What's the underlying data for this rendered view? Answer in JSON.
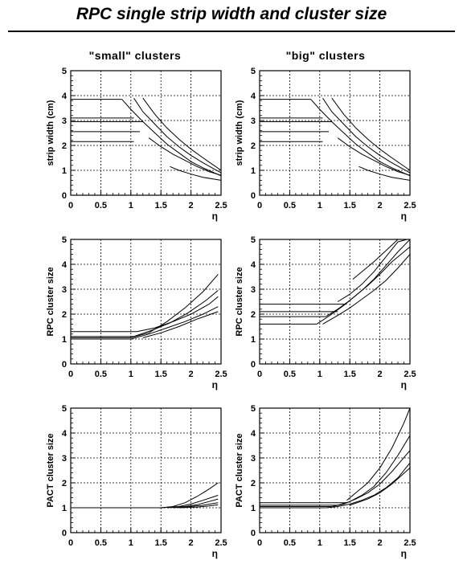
{
  "page": {
    "title": "RPC single strip width and cluster size",
    "columns": [
      "\"small\" clusters",
      "\"big\" clusters"
    ]
  },
  "chart_data": [
    {
      "type": "line",
      "panel": "strip-width-small",
      "column": "\"small\" clusters",
      "xlabel": "η",
      "ylabel": "strip width (cm)",
      "xlim": [
        0,
        2.5
      ],
      "ylim": [
        0,
        5
      ],
      "xticks": [
        "0",
        "0.5",
        "1",
        "1.5",
        "2",
        "2.5"
      ],
      "yticks": [
        "0",
        "1",
        "2",
        "3",
        "4",
        "5"
      ],
      "grid": true,
      "series": [
        {
          "x": [
            0.0,
            0.85
          ],
          "y": [
            3.85,
            3.85
          ]
        },
        {
          "x": [
            0.85,
            1.0,
            1.2,
            1.4,
            1.6,
            1.8,
            2.0,
            2.2,
            2.5
          ],
          "y": [
            3.85,
            3.45,
            2.95,
            2.5,
            2.05,
            1.7,
            1.35,
            1.1,
            0.78
          ]
        },
        {
          "x": [
            0.0,
            1.05
          ],
          "y": [
            3.1,
            3.1
          ]
        },
        {
          "x": [
            1.05,
            1.2,
            1.4,
            1.6,
            1.8,
            2.0,
            2.2,
            2.5
          ],
          "y": [
            3.9,
            3.35,
            2.85,
            2.35,
            1.95,
            1.6,
            1.3,
            0.9
          ]
        },
        {
          "x": [
            0.0,
            1.2
          ],
          "y": [
            2.95,
            2.95
          ]
        },
        {
          "x": [
            1.2,
            1.4,
            1.6,
            1.8,
            2.0,
            2.2,
            2.5
          ],
          "y": [
            3.9,
            3.25,
            2.7,
            2.25,
            1.85,
            1.5,
            1.0
          ]
        },
        {
          "x": [
            0.0,
            1.15
          ],
          "y": [
            2.55,
            2.55
          ]
        },
        {
          "x": [
            1.3,
            1.5,
            1.7,
            1.9,
            2.1,
            2.3,
            2.5
          ],
          "y": [
            2.3,
            1.95,
            1.65,
            1.4,
            1.15,
            0.95,
            0.8
          ]
        },
        {
          "x": [
            0.0,
            1.05
          ],
          "y": [
            2.15,
            2.15
          ]
        },
        {
          "x": [
            1.65,
            1.8,
            2.0,
            2.2,
            2.5
          ],
          "y": [
            1.15,
            1.0,
            0.85,
            0.72,
            0.6
          ]
        }
      ]
    },
    {
      "type": "line",
      "panel": "strip-width-big",
      "column": "\"big\" clusters",
      "xlabel": "η",
      "ylabel": "strip width (cm)",
      "xlim": [
        0,
        2.5
      ],
      "ylim": [
        0,
        5
      ],
      "xticks": [
        "0",
        "0.5",
        "1",
        "1.5",
        "2",
        "2.5"
      ],
      "yticks": [
        "0",
        "1",
        "2",
        "3",
        "4",
        "5"
      ],
      "grid": true,
      "series": [
        {
          "x": [
            0.0,
            0.85
          ],
          "y": [
            3.85,
            3.85
          ]
        },
        {
          "x": [
            0.85,
            1.0,
            1.2,
            1.4,
            1.6,
            1.8,
            2.0,
            2.2,
            2.5
          ],
          "y": [
            3.85,
            3.45,
            2.95,
            2.5,
            2.05,
            1.7,
            1.35,
            1.1,
            0.78
          ]
        },
        {
          "x": [
            0.0,
            1.05
          ],
          "y": [
            3.1,
            3.1
          ]
        },
        {
          "x": [
            1.05,
            1.2,
            1.4,
            1.6,
            1.8,
            2.0,
            2.2,
            2.5
          ],
          "y": [
            3.9,
            3.35,
            2.85,
            2.35,
            1.95,
            1.6,
            1.3,
            0.9
          ]
        },
        {
          "x": [
            0.0,
            1.2
          ],
          "y": [
            2.95,
            2.95
          ]
        },
        {
          "x": [
            1.2,
            1.4,
            1.6,
            1.8,
            2.0,
            2.2,
            2.5
          ],
          "y": [
            3.9,
            3.25,
            2.7,
            2.25,
            1.85,
            1.5,
            1.0
          ]
        },
        {
          "x": [
            0.0,
            1.15
          ],
          "y": [
            2.55,
            2.55
          ]
        },
        {
          "x": [
            1.3,
            1.5,
            1.7,
            1.9,
            2.1,
            2.3,
            2.5
          ],
          "y": [
            2.3,
            1.95,
            1.65,
            1.4,
            1.15,
            0.95,
            0.8
          ]
        },
        {
          "x": [
            0.0,
            1.05
          ],
          "y": [
            2.15,
            2.15
          ]
        },
        {
          "x": [
            1.65,
            1.8,
            2.0,
            2.2,
            2.5
          ],
          "y": [
            1.15,
            1.0,
            0.85,
            0.72,
            0.6
          ]
        }
      ]
    },
    {
      "type": "line",
      "panel": "rpc-cluster-small",
      "column": "\"small\" clusters",
      "xlabel": "η",
      "ylabel": "RPC cluster size",
      "xlim": [
        0,
        2.5
      ],
      "ylim": [
        0,
        5
      ],
      "xticks": [
        "0",
        "0.5",
        "1",
        "1.5",
        "2",
        "2.5"
      ],
      "yticks": [
        "0",
        "1",
        "2",
        "3",
        "4",
        "5"
      ],
      "grid": true,
      "series": [
        {
          "x": [
            0.0,
            1.0,
            1.3,
            1.6,
            1.9,
            2.2,
            2.45
          ],
          "y": [
            1.05,
            1.05,
            1.25,
            1.7,
            2.25,
            2.9,
            3.6
          ]
        },
        {
          "x": [
            0.0,
            1.05,
            1.35,
            1.65,
            1.95,
            2.25,
            2.45
          ],
          "y": [
            1.1,
            1.1,
            1.35,
            1.65,
            2.05,
            2.55,
            2.95
          ]
        },
        {
          "x": [
            0.0,
            1.1,
            1.4,
            1.7,
            2.0,
            2.3,
            2.45
          ],
          "y": [
            1.3,
            1.3,
            1.45,
            1.7,
            2.0,
            2.4,
            2.7
          ]
        },
        {
          "x": [
            0.0,
            1.0,
            1.3,
            1.6,
            1.9,
            2.2,
            2.45
          ],
          "y": [
            1.0,
            1.0,
            1.2,
            1.45,
            1.7,
            2.0,
            2.3
          ]
        },
        {
          "x": [
            1.2,
            1.5,
            1.8,
            2.1,
            2.45
          ],
          "y": [
            1.05,
            1.25,
            1.5,
            1.8,
            2.1
          ]
        }
      ]
    },
    {
      "type": "line",
      "panel": "rpc-cluster-big",
      "column": "\"big\" clusters",
      "xlabel": "η",
      "ylabel": "RPC cluster size",
      "xlim": [
        0,
        2.5
      ],
      "ylim": [
        0,
        5
      ],
      "xticks": [
        "0",
        "0.5",
        "1",
        "1.5",
        "2",
        "2.5"
      ],
      "yticks": [
        "0",
        "1",
        "2",
        "3",
        "4",
        "5"
      ],
      "grid": true,
      "series": [
        {
          "x": [
            0.0,
            1.45
          ],
          "y": [
            2.4,
            2.4
          ]
        },
        {
          "x": [
            1.55,
            1.7,
            1.9,
            2.1,
            2.3,
            2.45
          ],
          "y": [
            3.4,
            3.7,
            4.1,
            4.55,
            5.0,
            5.0
          ]
        },
        {
          "x": [
            0.0,
            1.3
          ],
          "y": [
            2.1,
            2.1
          ]
        },
        {
          "x": [
            1.3,
            1.5,
            1.7,
            1.9,
            2.1,
            2.3,
            2.45
          ],
          "y": [
            2.5,
            2.8,
            3.2,
            3.7,
            4.3,
            4.9,
            5.0
          ]
        },
        {
          "x": [
            0.0,
            1.1
          ],
          "y": [
            1.9,
            1.9
          ]
        },
        {
          "x": [
            1.1,
            1.3,
            1.5,
            1.7,
            1.9,
            2.1,
            2.3,
            2.5
          ],
          "y": [
            1.9,
            2.2,
            2.55,
            2.95,
            3.4,
            3.95,
            4.5,
            5.0
          ]
        },
        {
          "x": [
            0.0,
            0.95
          ],
          "y": [
            1.6,
            1.6
          ]
        },
        {
          "x": [
            0.95,
            1.2,
            1.4,
            1.6,
            1.8,
            2.0,
            2.2,
            2.5
          ],
          "y": [
            1.6,
            2.0,
            2.35,
            2.75,
            3.15,
            3.6,
            4.1,
            4.7
          ]
        },
        {
          "x": [
            1.05,
            1.3,
            1.5,
            1.7,
            1.9,
            2.1,
            2.3,
            2.5
          ],
          "y": [
            1.6,
            1.95,
            2.25,
            2.6,
            2.95,
            3.35,
            3.85,
            4.4
          ]
        }
      ]
    },
    {
      "type": "line",
      "panel": "pact-cluster-small",
      "column": "\"small\" clusters",
      "xlabel": "η",
      "ylabel": "PACT cluster size",
      "xlim": [
        0,
        2.5
      ],
      "ylim": [
        0,
        5
      ],
      "xticks": [
        "0",
        "0.5",
        "1",
        "1.5",
        "2",
        "2.5"
      ],
      "yticks": [
        "0",
        "1",
        "2",
        "3",
        "4",
        "5"
      ],
      "grid": true,
      "series": [
        {
          "x": [
            0.0,
            1.5
          ],
          "y": [
            1.0,
            1.0
          ]
        },
        {
          "x": [
            1.5,
            1.7,
            1.9,
            2.1,
            2.3,
            2.45
          ],
          "y": [
            1.0,
            1.05,
            1.2,
            1.45,
            1.75,
            2.0
          ]
        },
        {
          "x": [
            1.5,
            1.8,
            2.0,
            2.2,
            2.45
          ],
          "y": [
            1.0,
            1.05,
            1.15,
            1.3,
            1.5
          ]
        },
        {
          "x": [
            1.6,
            1.9,
            2.1,
            2.3,
            2.45
          ],
          "y": [
            1.0,
            1.05,
            1.12,
            1.25,
            1.35
          ]
        },
        {
          "x": [
            1.7,
            2.0,
            2.2,
            2.45
          ],
          "y": [
            1.0,
            1.05,
            1.1,
            1.2
          ]
        },
        {
          "x": [
            1.8,
            2.1,
            2.3,
            2.45
          ],
          "y": [
            1.0,
            1.03,
            1.07,
            1.12
          ]
        }
      ]
    },
    {
      "type": "line",
      "panel": "pact-cluster-big",
      "column": "\"big\" clusters",
      "xlabel": "η",
      "ylabel": "PACT cluster size",
      "xlim": [
        0,
        2.5
      ],
      "ylim": [
        0,
        5
      ],
      "xticks": [
        "0",
        "0.5",
        "1",
        "1.5",
        "2",
        "2.5"
      ],
      "yticks": [
        "0",
        "1",
        "2",
        "3",
        "4",
        "5"
      ],
      "grid": true,
      "series": [
        {
          "x": [
            0.0,
            1.45
          ],
          "y": [
            1.2,
            1.2
          ]
        },
        {
          "x": [
            1.45,
            1.6,
            1.8,
            2.0,
            2.2,
            2.4,
            2.5
          ],
          "y": [
            1.3,
            1.6,
            2.0,
            2.6,
            3.4,
            4.4,
            5.0
          ]
        },
        {
          "x": [
            0.0,
            1.3
          ],
          "y": [
            1.1,
            1.1
          ]
        },
        {
          "x": [
            1.3,
            1.5,
            1.7,
            1.9,
            2.1,
            2.3,
            2.5
          ],
          "y": [
            1.1,
            1.25,
            1.5,
            1.85,
            2.4,
            3.1,
            3.9
          ]
        },
        {
          "x": [
            0.0,
            1.2
          ],
          "y": [
            1.05,
            1.05
          ]
        },
        {
          "x": [
            1.2,
            1.4,
            1.6,
            1.8,
            2.0,
            2.2,
            2.5
          ],
          "y": [
            1.05,
            1.15,
            1.35,
            1.6,
            1.95,
            2.45,
            3.3
          ]
        },
        {
          "x": [
            0.0,
            1.1
          ],
          "y": [
            1.0,
            1.0
          ]
        },
        {
          "x": [
            1.1,
            1.3,
            1.5,
            1.7,
            1.9,
            2.1,
            2.3,
            2.5
          ],
          "y": [
            1.0,
            1.05,
            1.15,
            1.3,
            1.5,
            1.8,
            2.2,
            2.8
          ]
        },
        {
          "x": [
            1.5,
            1.8,
            2.0,
            2.2,
            2.5
          ],
          "y": [
            1.1,
            1.35,
            1.6,
            1.95,
            2.6
          ]
        }
      ]
    }
  ]
}
